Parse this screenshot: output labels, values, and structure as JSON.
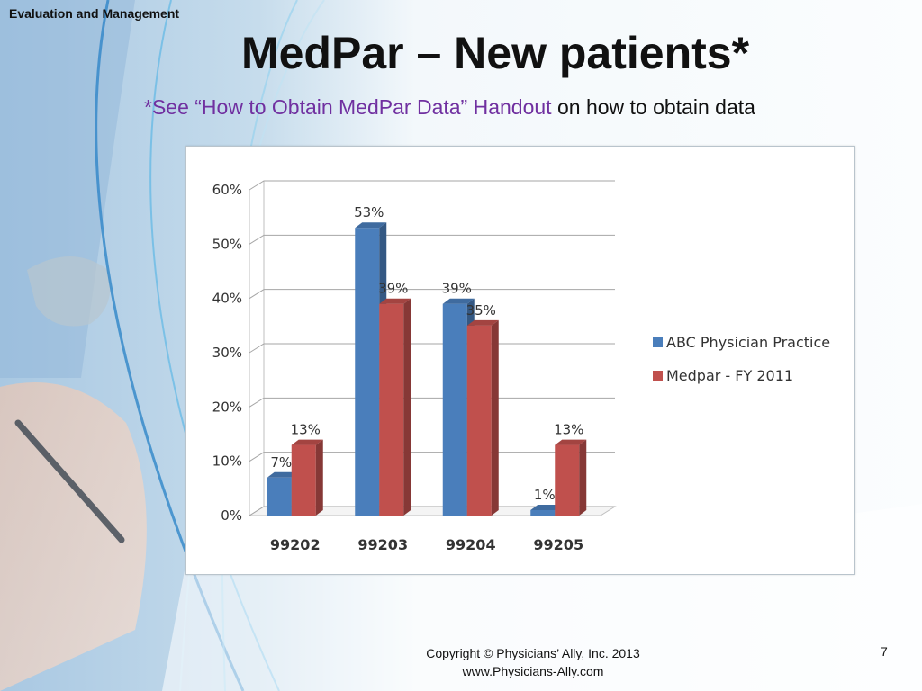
{
  "slide": {
    "section_label": "Evaluation and Management",
    "title": "MedPar – New patients*",
    "subtitle_link": "*See “How to Obtain MedPar Data” Handout",
    "subtitle_rest": " on how to obtain data",
    "footer_line1": "Copyright © Physicians’ Ally, Inc. 2013",
    "footer_line2": "www.Physicians-Ally.com",
    "page_number": "7"
  },
  "chart_data": {
    "type": "bar",
    "title": "",
    "xlabel": "",
    "ylabel": "",
    "categories": [
      "99202",
      "99203",
      "99204",
      "99205"
    ],
    "series": [
      {
        "name": "ABC Physician Practice",
        "values": [
          7,
          53,
          39,
          1
        ],
        "labels": [
          "7%",
          "53%",
          "39%",
          "1%"
        ],
        "color": "#4a7ebb"
      },
      {
        "name": "Medpar - FY 2011",
        "values": [
          13,
          39,
          35,
          13
        ],
        "labels": [
          "13%",
          "39%",
          "35%",
          "13%"
        ],
        "color": "#c0504d"
      }
    ],
    "ylim": [
      0,
      60
    ],
    "yticks": [
      0,
      10,
      20,
      30,
      40,
      50,
      60
    ],
    "ytick_labels": [
      "0%",
      "10%",
      "20%",
      "30%",
      "40%",
      "50%",
      "60%"
    ],
    "grid": true,
    "legend": "right",
    "style": "3d-clustered"
  }
}
